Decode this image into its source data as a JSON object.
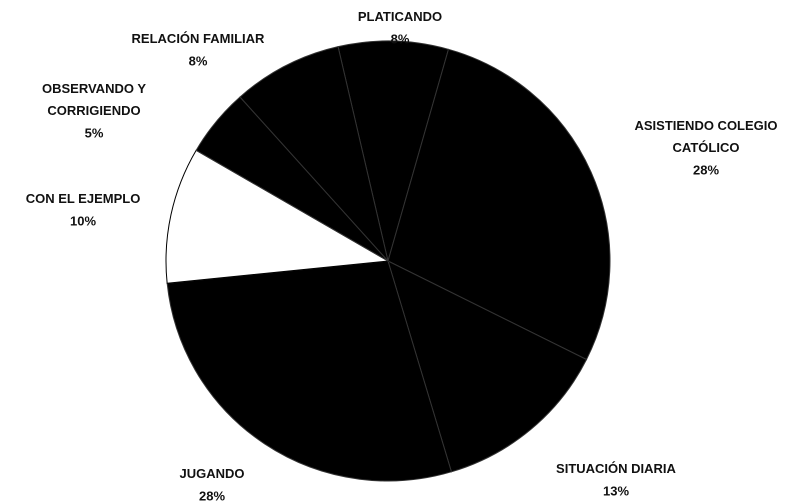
{
  "chart_data": {
    "type": "pie",
    "categories": [
      "PLATICANDO",
      "ASISTIENDO COLEGIO CATÓLICO",
      "SITUACIÓN DIARIA",
      "JUGANDO",
      "CON EL EJEMPLO",
      "OBSERVANDO Y CORRIGIENDO",
      "RELACIÓN FAMILIAR"
    ],
    "values": [
      8,
      28,
      13,
      28,
      10,
      5,
      8
    ],
    "value_labels": [
      "8%",
      "28%",
      "13%",
      "28%",
      "10%",
      "5%",
      "8%"
    ],
    "colors": [
      "#000000",
      "#000000",
      "#000000",
      "#000000",
      "#ffffff",
      "#000000",
      "#000000"
    ]
  }
}
